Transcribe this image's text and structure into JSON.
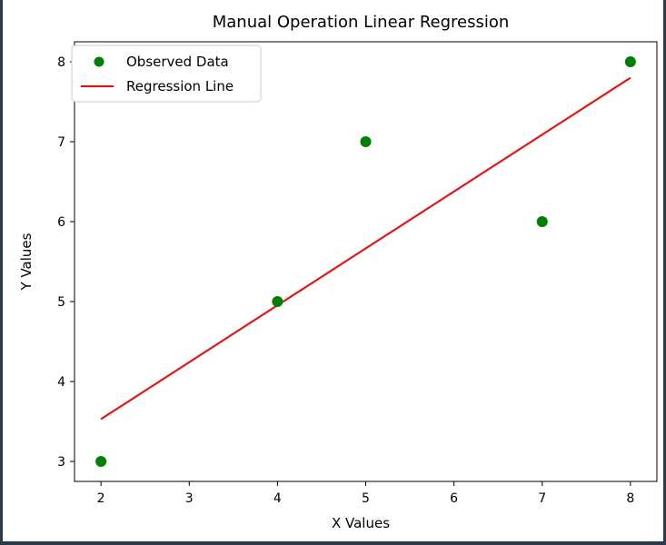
{
  "chart_data": {
    "type": "scatter",
    "title": "Manual Operation Linear Regression",
    "xlabel": "X Values",
    "ylabel": "Y Values",
    "xlim": [
      1.7,
      8.3
    ],
    "ylim": [
      2.75,
      8.25
    ],
    "xticks": [
      2,
      3,
      4,
      5,
      6,
      7,
      8
    ],
    "yticks": [
      3,
      4,
      5,
      6,
      7,
      8
    ],
    "grid": false,
    "legend_position": "upper-left",
    "series": [
      {
        "name": "Observed Data",
        "kind": "scatter",
        "color": "#008000",
        "x": [
          2,
          4,
          5,
          7,
          8
        ],
        "y": [
          3,
          5,
          7,
          6,
          8
        ]
      },
      {
        "name": "Regression Line",
        "kind": "line",
        "color": "#ff0000",
        "x": [
          2,
          8
        ],
        "y": [
          3.53,
          7.8
        ]
      }
    ]
  }
}
